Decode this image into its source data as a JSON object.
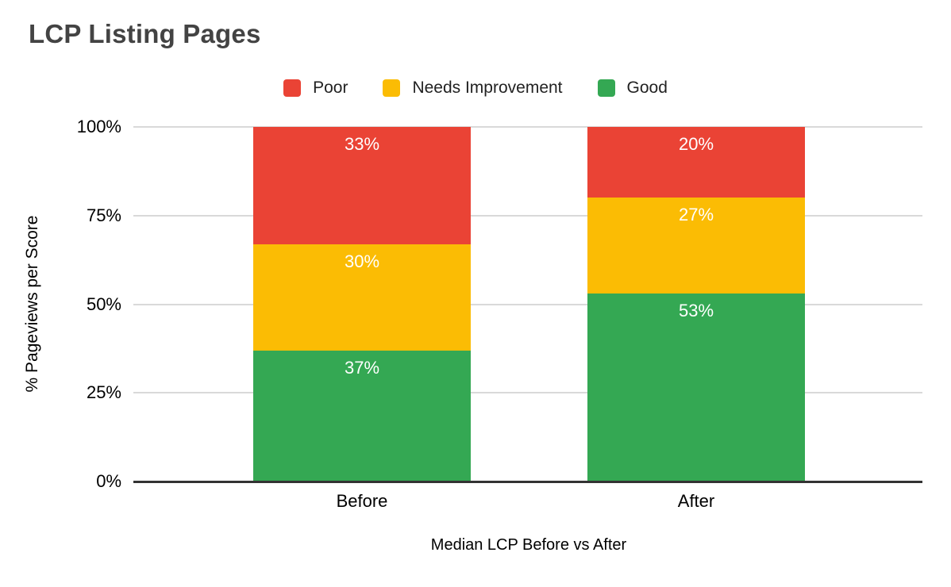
{
  "chart_data": {
    "type": "bar",
    "stacked": true,
    "orientation": "vertical",
    "title": "LCP Listing Pages",
    "categories": [
      "Before",
      "After"
    ],
    "series": [
      {
        "name": "Poor",
        "color": "#EA4335",
        "values": [
          33,
          20
        ]
      },
      {
        "name": "Needs Improvement",
        "color": "#FBBC04",
        "values": [
          30,
          27
        ]
      },
      {
        "name": "Good",
        "color": "#34A853",
        "values": [
          37,
          53
        ]
      }
    ],
    "stack_order_bottom_to_top": [
      "Good",
      "Needs Improvement",
      "Poor"
    ],
    "data_labels": [
      "33%",
      "30%",
      "37%",
      "20%",
      "27%",
      "53%"
    ],
    "value_suffix": "%",
    "xlabel": "Median LCP Before vs After",
    "ylabel": "% Pageviews per Score",
    "y_ticks": [
      "0%",
      "25%",
      "50%",
      "75%",
      "100%"
    ],
    "ylim": [
      0,
      100
    ],
    "grid": true,
    "legend_position": "top",
    "legend": [
      "Poor",
      "Needs Improvement",
      "Good"
    ]
  },
  "colors": {
    "title_text": "#434343",
    "axis_text": "#000000",
    "legend_text": "#222222",
    "data_label_text": "#ffffff",
    "gridline": "#d9d9d9",
    "baseline": "#333333",
    "poor": "#EA4335",
    "needs_improvement": "#FBBC04",
    "good": "#34A853",
    "background": "#ffffff"
  }
}
